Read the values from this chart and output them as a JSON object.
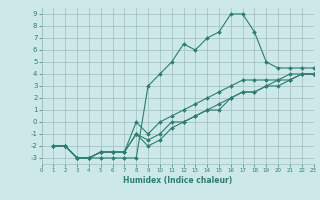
{
  "title": "",
  "xlabel": "Humidex (Indice chaleur)",
  "bg_color": "#cce8e8",
  "grid_color": "#9dbfbf",
  "line_color": "#2e7d6e",
  "xlim": [
    0,
    23
  ],
  "ylim": [
    -3.5,
    9.5
  ],
  "xticks": [
    0,
    1,
    2,
    3,
    4,
    5,
    6,
    7,
    8,
    9,
    10,
    11,
    12,
    13,
    14,
    15,
    16,
    17,
    18,
    19,
    20,
    21,
    22,
    23
  ],
  "yticks": [
    -3,
    -2,
    -1,
    0,
    1,
    2,
    3,
    4,
    5,
    6,
    7,
    8,
    9
  ],
  "line1_x": [
    1,
    2,
    3,
    4,
    5,
    6,
    7,
    8,
    9,
    10,
    11,
    12,
    13,
    14,
    15,
    16,
    17,
    18,
    19,
    20,
    21,
    22,
    23
  ],
  "line1_y": [
    -2,
    -2,
    -3,
    -3,
    -3,
    -3,
    -3,
    -3,
    3,
    4,
    5,
    6.5,
    6,
    7,
    7.5,
    9,
    9,
    7.5,
    5,
    4.5,
    4.5,
    4.5,
    4.5
  ],
  "line2_x": [
    1,
    2,
    3,
    4,
    5,
    6,
    7,
    8,
    9,
    10,
    11,
    12,
    13,
    14,
    15,
    16,
    17,
    18,
    19,
    20,
    21,
    22,
    23
  ],
  "line2_y": [
    -2,
    -2,
    -3,
    -3,
    -2.5,
    -2.5,
    -2.5,
    0,
    -1,
    0,
    0.5,
    1,
    1.5,
    2,
    2.5,
    3,
    3.5,
    3.5,
    3.5,
    3.5,
    4,
    4,
    4
  ],
  "line3_x": [
    1,
    2,
    3,
    4,
    5,
    6,
    7,
    8,
    9,
    10,
    11,
    12,
    13,
    14,
    15,
    16,
    17,
    18,
    19,
    20,
    21,
    22,
    23
  ],
  "line3_y": [
    -2,
    -2,
    -3,
    -3,
    -2.5,
    -2.5,
    -2.5,
    -1,
    -1.5,
    -1,
    0,
    0,
    0.5,
    1,
    1.5,
    2,
    2.5,
    2.5,
    3,
    3.5,
    3.5,
    4,
    4
  ],
  "line4_x": [
    1,
    2,
    3,
    4,
    5,
    6,
    7,
    8,
    9,
    10,
    11,
    12,
    13,
    14,
    15,
    16,
    17,
    18,
    19,
    20,
    21,
    22,
    23
  ],
  "line4_y": [
    -2,
    -2,
    -3,
    -3,
    -2.5,
    -2.5,
    -2.5,
    -1,
    -2,
    -1.5,
    -0.5,
    0,
    0.5,
    1,
    1,
    2,
    2.5,
    2.5,
    3,
    3,
    3.5,
    4,
    4
  ]
}
